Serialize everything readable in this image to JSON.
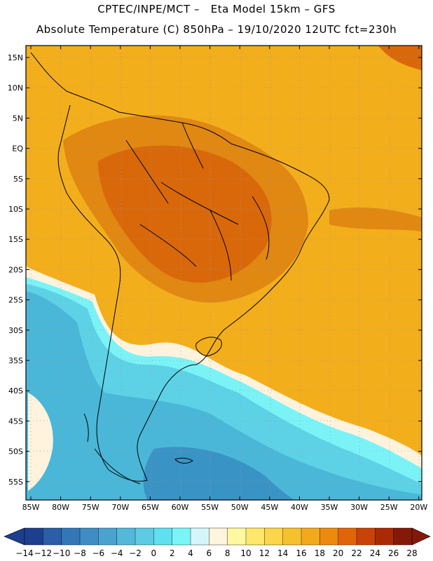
{
  "title_line1": "CPTEC/INPE/MCT –   Eta Model 15km – GFS",
  "title_line2": "Absolute Temperature (C) 850hPa – 19/10/2020 12UTC fct=230h",
  "map": {
    "lat_ticks": [
      "15N",
      "10N",
      "5N",
      "EQ",
      "5S",
      "10S",
      "15S",
      "20S",
      "25S",
      "30S",
      "35S",
      "40S",
      "45S",
      "50S",
      "55S"
    ],
    "lon_ticks": [
      "85W",
      "80W",
      "75W",
      "70W",
      "65W",
      "60W",
      "55W",
      "50W",
      "45W",
      "40W",
      "35W",
      "30W",
      "25W",
      "20W"
    ]
  },
  "colorbar": {
    "labels": [
      "-14",
      "-12",
      "-10",
      "-8",
      "-6",
      "-4",
      "-2",
      "0",
      "2",
      "4",
      "6",
      "8",
      "10",
      "12",
      "14",
      "16",
      "18",
      "20",
      "22",
      "24",
      "26",
      "28"
    ],
    "colors": [
      "#1d3f8f",
      "#2a5ea6",
      "#3377b6",
      "#3f8dc4",
      "#4aa3cf",
      "#55b8d8",
      "#5dcbe3",
      "#5fe0ee",
      "#7af5f7",
      "#d4f6fb",
      "#fff4dc",
      "#fff8a0",
      "#ffe76c",
      "#fcd64a",
      "#f6c12f",
      "#f2a91c",
      "#ec8a10",
      "#e0650a",
      "#c94208",
      "#aa2a06",
      "#851907"
    ]
  }
}
